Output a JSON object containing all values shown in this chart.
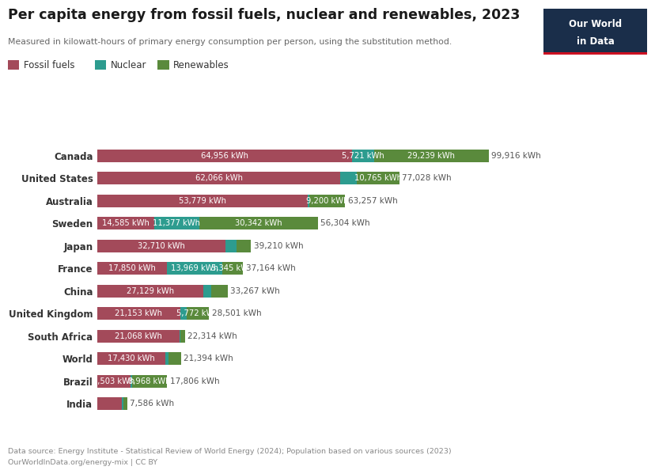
{
  "title": "Per capita energy from fossil fuels, nuclear and renewables, 2023",
  "subtitle": "Measured in kilowatt-hours of primary energy consumption per person, using the substitution method.",
  "countries": [
    "Canada",
    "United States",
    "Australia",
    "Sweden",
    "Japan",
    "France",
    "China",
    "United Kingdom",
    "South Africa",
    "World",
    "Brazil",
    "India"
  ],
  "fossil_fuels": [
    64956,
    62066,
    53779,
    14585,
    32710,
    17850,
    27129,
    21153,
    21068,
    17430,
    8503,
    6336
  ],
  "nuclear": [
    5721,
    4197,
    278,
    11377,
    2736,
    13969,
    1974,
    1576,
    133,
    780,
    335,
    244
  ],
  "renewables": [
    29239,
    10765,
    9200,
    30342,
    3764,
    5345,
    4164,
    5772,
    1113,
    3184,
    8968,
    1006
  ],
  "totals": [
    99916,
    77028,
    63257,
    56304,
    39210,
    37164,
    33267,
    28501,
    22314,
    21394,
    17806,
    7586
  ],
  "fossil_color": "#a34a5a",
  "nuclear_color": "#2d9c8f",
  "renewables_color": "#5a8a3c",
  "background_color": "#ffffff",
  "label_color_inside": "#ffffff",
  "label_color_outside": "#555555",
  "title_color": "#1a1a1a",
  "subtitle_color": "#666666",
  "footnote_color": "#888888",
  "data_source_line1": "Data source: Energy Institute - Statistical Review of World Energy (2024); Population based on various sources (2023)",
  "data_source_line2": "OurWorldInData.org/energy-mix | CC BY",
  "owid_box_color": "#1a2e4a",
  "owid_red": "#cc1122",
  "legend_labels": [
    "Fossil fuels",
    "Nuclear",
    "Renewables"
  ],
  "legend_colors": [
    "#a34a5a",
    "#2d9c8f",
    "#5a8a3c"
  ],
  "xlim_max": 115000,
  "label_min_fossil": 8000,
  "label_min_nuclear": 4500,
  "label_min_renewables": 5000
}
